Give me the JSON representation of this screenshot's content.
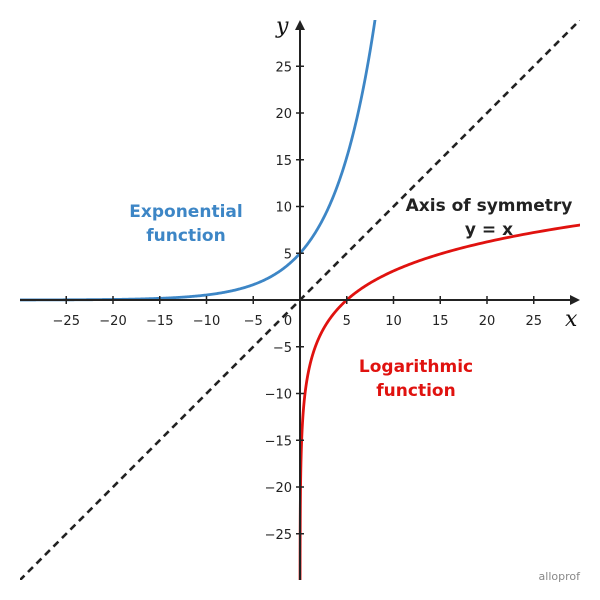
{
  "chart_data": {
    "type": "line",
    "title": "",
    "xlabel": "x",
    "ylabel": "y",
    "xlim": [
      -30,
      30
    ],
    "ylim": [
      -30,
      30
    ],
    "xticks": [
      -25,
      -20,
      -15,
      -10,
      -5,
      0,
      5,
      10,
      15,
      20,
      25
    ],
    "xtick_labels": [
      "−25",
      "−20",
      "−15",
      "−10",
      "−5",
      "0",
      "5",
      "10",
      "15",
      "20",
      "25"
    ],
    "yticks": [
      -25,
      -20,
      -15,
      -10,
      -5,
      5,
      10,
      15,
      20,
      25
    ],
    "ytick_labels": [
      "−25",
      "−20",
      "−15",
      "−10",
      "−5",
      "5",
      "10",
      "15",
      "20",
      "25"
    ],
    "grid": false,
    "series": [
      {
        "key": "exponential",
        "x": [
          -30,
          -25,
          -20,
          -15,
          -10,
          -5,
          0,
          2,
          4,
          6,
          7,
          8.3
        ],
        "y": [
          0.03,
          0.07,
          0.19,
          0.48,
          1.2,
          2.4,
          5,
          6.9,
          9.7,
          13.6,
          16.3,
          21.8
        ],
        "color": "#3d86c6"
      },
      {
        "key": "logarithmic",
        "x": [
          0.03,
          0.07,
          0.19,
          0.48,
          1.2,
          2.4,
          5,
          6.9,
          9.7,
          13.6,
          16.3,
          21.8,
          30
        ],
        "y": [
          -30,
          -25,
          -20,
          -15,
          -10,
          -5,
          0,
          2,
          4,
          6,
          7,
          8.3,
          8.2
        ],
        "color": "#e0120f"
      },
      {
        "key": "symmetry",
        "x": [
          -30,
          30
        ],
        "y": [
          -30,
          30
        ],
        "color": "#222222",
        "dashed": true
      }
    ],
    "annotations": {
      "exponential_line1": "Exponential",
      "exponential_line2": "function",
      "logarithmic_line1": "Logarithmic",
      "logarithmic_line2": "function",
      "symmetry_line1": "Axis of symmetry",
      "symmetry_line2": "y = x"
    },
    "colors": {
      "exponential": "#3d86c6",
      "logarithmic": "#e0120f",
      "axis": "#222222"
    }
  },
  "brand": "alloprof"
}
